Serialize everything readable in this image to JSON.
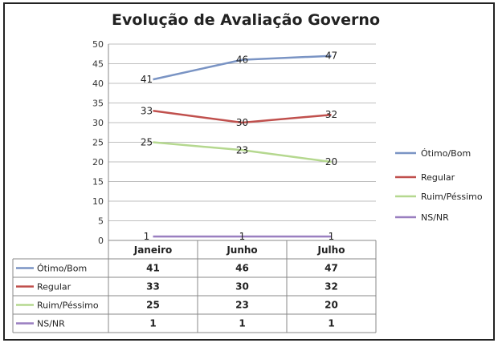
{
  "chart_data": {
    "type": "line",
    "title": "Evolução de Avaliação Governo",
    "categories": [
      "Janeiro",
      "Junho",
      "Julho"
    ],
    "ylim": [
      0,
      50
    ],
    "yticks": [
      0,
      5,
      10,
      15,
      20,
      25,
      30,
      35,
      40,
      45,
      50
    ],
    "grid": true,
    "legend": "right",
    "data_table": true,
    "series": [
      {
        "name": "Ótimo/Bom",
        "values": [
          41,
          46,
          47
        ],
        "color": "#7a94c4"
      },
      {
        "name": "Regular",
        "values": [
          33,
          30,
          32
        ],
        "color": "#c0504d"
      },
      {
        "name": "Ruim/Péssimo",
        "values": [
          25,
          23,
          20
        ],
        "color": "#b5d88f"
      },
      {
        "name": "NS/NR",
        "values": [
          1,
          1,
          1
        ],
        "color": "#9a7fc0"
      }
    ]
  }
}
